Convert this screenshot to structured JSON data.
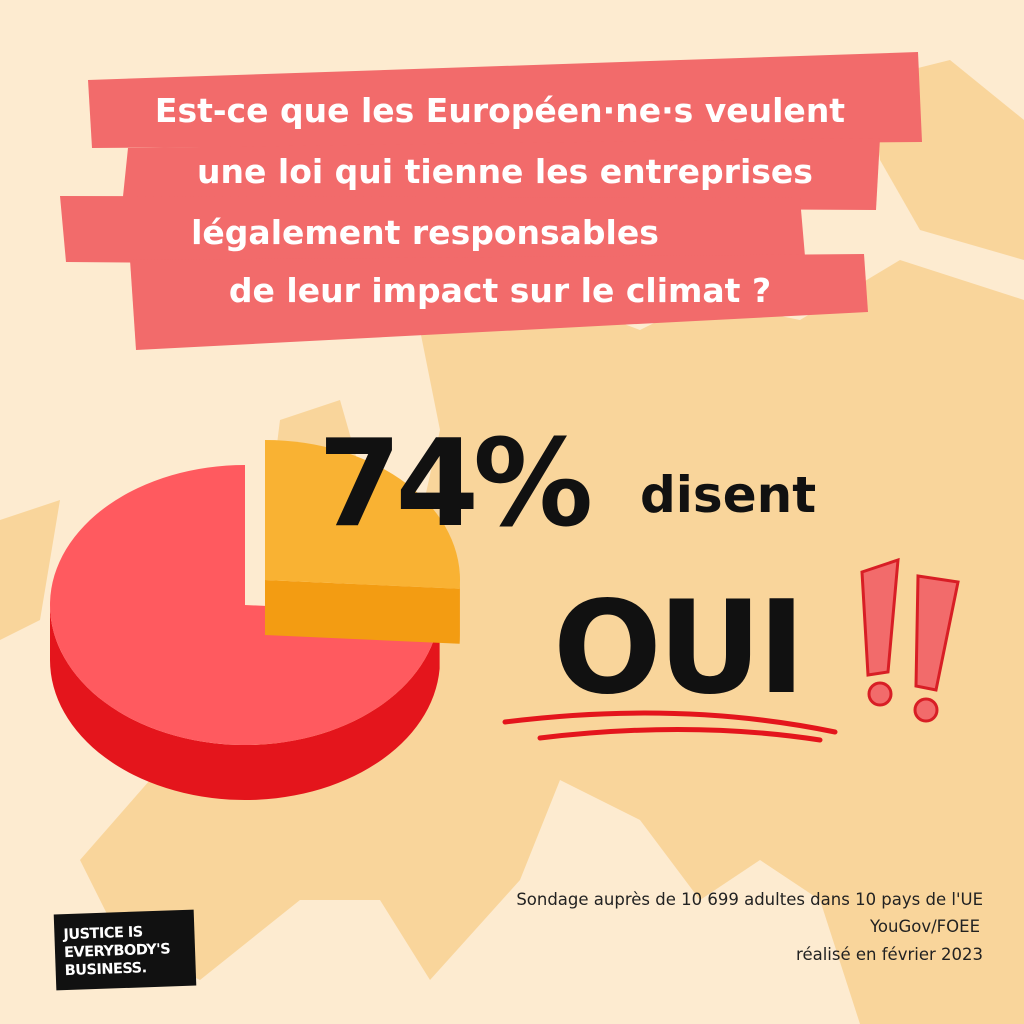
{
  "chart_data": {
    "type": "pie",
    "title": [
      "Est-ce que les Européen·ne·s veulent",
      "une loi qui tienne les entreprises",
      "légalement responsables",
      "de leur impact sur le climat ?"
    ],
    "values": [
      74,
      26
    ],
    "value_labels": [
      "74%",
      null
    ],
    "colors": [
      "#ff5a5f",
      "#f9b233"
    ],
    "side_colors": [
      "#e4151c",
      "#f39c12"
    ],
    "annotations": [
      "disent",
      "OUI"
    ],
    "source": [
      "Sondage auprès de 10 699 adultes dans 10 pays de l'UE",
      "YouGov/FOEE",
      "réalisé en février 2023"
    ],
    "logo": [
      "JUSTICE IS",
      "EVERYBODY'S",
      "BUSINESS."
    ]
  }
}
